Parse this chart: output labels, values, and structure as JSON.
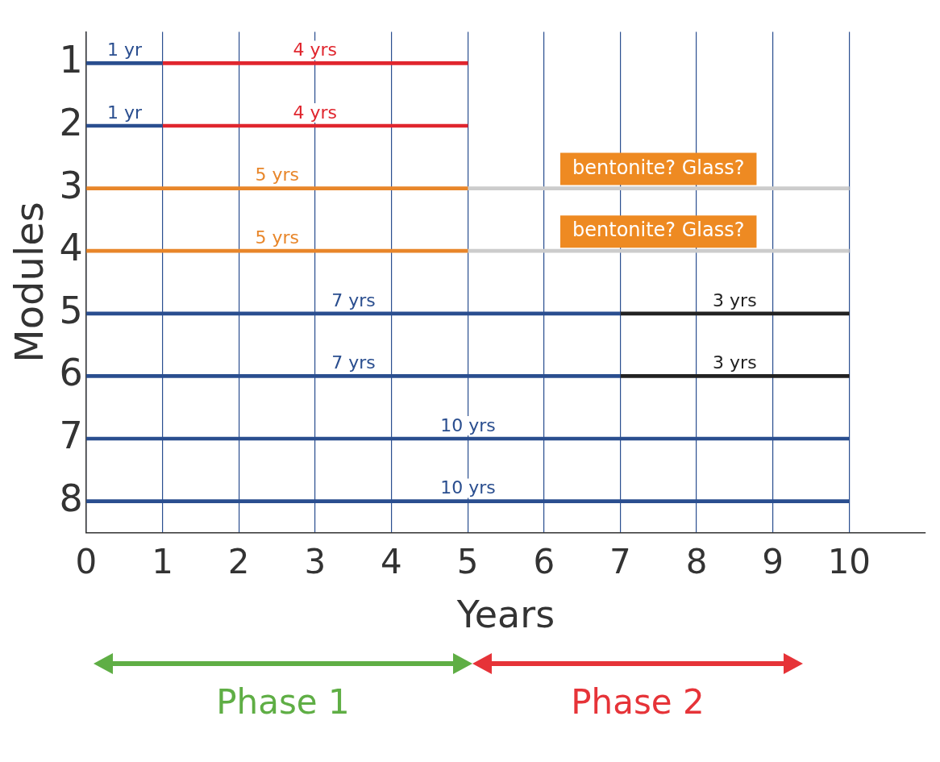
{
  "chart_data": {
    "type": "bar",
    "orientation": "horizontal",
    "xlabel": "Years",
    "ylabel": "Modules",
    "categories": [
      "1",
      "2",
      "3",
      "4",
      "5",
      "6",
      "7",
      "8"
    ],
    "series": [
      {
        "values": [
          1,
          1,
          5,
          5,
          7,
          7,
          10,
          10
        ],
        "base": [
          0,
          0,
          0,
          0,
          0,
          0,
          0,
          0
        ],
        "colors": [
          "#2a4e8f",
          "#2a4e8f",
          "#e8862a",
          "#e8862a",
          "#2a4e8f",
          "#2a4e8f",
          "#2a4e8f",
          "#2a4e8f"
        ],
        "value_labels": [
          "1 yr",
          "1 yr",
          "5 yrs",
          "5 yrs",
          "7 yrs",
          "7 yrs",
          "10 yrs",
          "10 yrs"
        ]
      },
      {
        "values": [
          4,
          4,
          null,
          null,
          3,
          3,
          null,
          null
        ],
        "base": [
          1,
          1,
          null,
          null,
          7,
          7,
          null,
          null
        ],
        "colors": [
          "#e0262e",
          "#e0262e",
          "#e0262e",
          "#e0262e",
          "#222222",
          "#222222",
          "#222222",
          "#222222"
        ],
        "value_labels": [
          "4 yrs",
          "4 yrs",
          null,
          null,
          "3 yrs",
          "3 yrs",
          null,
          null
        ]
      },
      {
        "values": [
          null,
          null,
          5,
          5,
          null,
          null,
          null,
          null
        ],
        "base": [
          null,
          null,
          5,
          5,
          null,
          null,
          null,
          null
        ],
        "color": "#cccccc"
      }
    ],
    "annotations": [
      {
        "text": "bentonite? Glass?",
        "x": 7.5,
        "y": "3"
      },
      {
        "text": "bentonite? Glass?",
        "x": 7.5,
        "y": "4"
      },
      "Phase 1",
      "Phase 2"
    ],
    "xlim": [
      0,
      11
    ],
    "xticks": [
      0,
      1,
      2,
      3,
      4,
      5,
      6,
      7,
      8,
      9,
      10
    ],
    "grid": "x",
    "legend": false
  }
}
